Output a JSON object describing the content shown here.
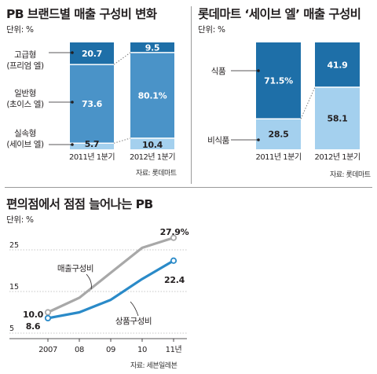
{
  "chart_data": [
    {
      "type": "bar",
      "stacked": true,
      "title": "PB 브랜드별 매출 구성비 변화",
      "unit": "단위: %",
      "categories": [
        "2011년 1분기",
        "2012년 1분기"
      ],
      "series": [
        {
          "name": "실속형",
          "name_sub": "(세이브 엘)",
          "values": [
            5.7,
            10.4
          ],
          "labels": [
            "5.7",
            "10.4"
          ],
          "color": "#a4d0ee",
          "label_color": "#231f20"
        },
        {
          "name": "일반형",
          "name_sub": "(초이스 엘)",
          "values": [
            73.6,
            80.1
          ],
          "labels": [
            "73.6",
            "80.1%"
          ],
          "color": "#4a93c8",
          "label_color": "#ffffff"
        },
        {
          "name": "고급형",
          "name_sub": "(프리엄 엘)",
          "values": [
            20.7,
            9.5
          ],
          "labels": [
            "20.7",
            "9.5"
          ],
          "color": "#1e6fa8",
          "label_color": "#ffffff"
        }
      ],
      "source": "자료: 롯데마트"
    },
    {
      "type": "bar",
      "stacked": true,
      "title": "롯데마트 ‘세이브 엘’ 매출 구성비",
      "unit": "단위: %",
      "categories": [
        "2011년 1분기",
        "2012년 1분기"
      ],
      "series": [
        {
          "name": "비식품",
          "values": [
            28.5,
            58.1
          ],
          "labels": [
            "28.5",
            "58.1"
          ],
          "color": "#a4d0ee",
          "label_color": "#231f20"
        },
        {
          "name": "식품",
          "values": [
            71.5,
            41.9
          ],
          "labels": [
            "71.5%",
            "41.9"
          ],
          "color": "#1e6fa8",
          "label_color": "#ffffff"
        }
      ],
      "source": "자료: 롯데마트"
    },
    {
      "type": "line",
      "title": "편의점에서 점점 늘어나는 PB",
      "unit": "단위: %",
      "x": [
        "2007",
        "08",
        "09",
        "10",
        "11년"
      ],
      "yticks": [
        5,
        15,
        25
      ],
      "ylim": [
        5,
        28
      ],
      "series": [
        {
          "name": "매출구성비",
          "values": [
            10.0,
            13.5,
            19.5,
            25.5,
            27.9
          ],
          "end_labels": [
            "10.0",
            "27.9%"
          ],
          "color": "#a8a8a8"
        },
        {
          "name": "상품구성비",
          "values": [
            8.6,
            10.0,
            13.0,
            18.0,
            22.4
          ],
          "end_labels": [
            "8.6",
            "22.4"
          ],
          "color": "#2a8ac8"
        }
      ],
      "source": "자료: 세븐일레븐"
    }
  ]
}
